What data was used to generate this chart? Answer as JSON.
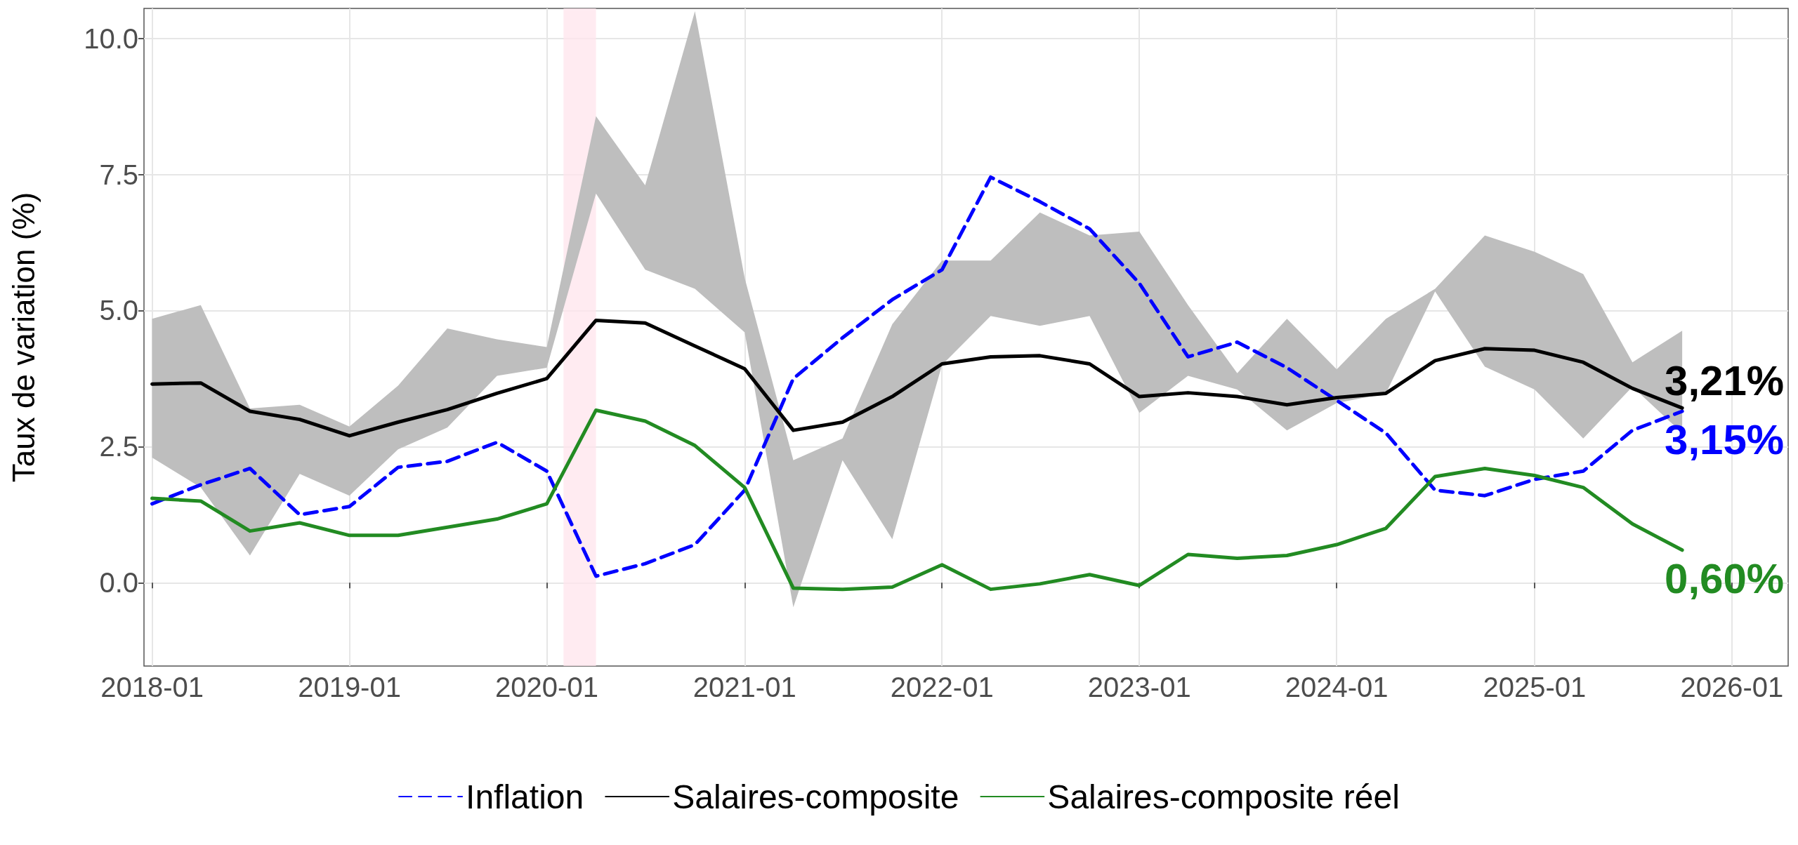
{
  "chart_data": {
    "type": "line",
    "ylabel": "Taux de variation (%)",
    "x": [
      "2018-01",
      "2018-04",
      "2018-07",
      "2018-10",
      "2019-01",
      "2019-04",
      "2019-07",
      "2019-10",
      "2020-01",
      "2020-04",
      "2020-07",
      "2020-10",
      "2021-01",
      "2021-04",
      "2021-07",
      "2021-10",
      "2022-01",
      "2022-04",
      "2022-07",
      "2022-10",
      "2023-01",
      "2023-04",
      "2023-07",
      "2023-10",
      "2024-01",
      "2024-04",
      "2024-07",
      "2024-10",
      "2025-01",
      "2025-04",
      "2025-07",
      "2025-10"
    ],
    "series": [
      {
        "name": "Inflation",
        "color": "#0000ff",
        "line_style": "dashed",
        "values": [
          1.45,
          1.8,
          2.1,
          1.25,
          1.4,
          2.12,
          2.23,
          2.58,
          2.05,
          0.12,
          0.35,
          0.7,
          1.7,
          3.75,
          4.5,
          5.2,
          5.75,
          7.45,
          7.0,
          6.5,
          5.5,
          4.15,
          4.42,
          3.95,
          3.35,
          2.75,
          1.7,
          1.6,
          1.9,
          2.05,
          2.8,
          3.15
        ],
        "value_labels": [
          null,
          null,
          null,
          null,
          null,
          null,
          null,
          null,
          null,
          null,
          null,
          null,
          null,
          null,
          null,
          null,
          null,
          null,
          null,
          null,
          null,
          null,
          null,
          null,
          null,
          null,
          null,
          null,
          null,
          null,
          null,
          "3,15%"
        ]
      },
      {
        "name": "Salaires-composite",
        "color": "#000000",
        "line_style": "solid",
        "values": [
          3.65,
          3.67,
          3.15,
          3.0,
          2.7,
          2.95,
          3.18,
          3.48,
          3.75,
          4.82,
          4.77,
          4.35,
          3.93,
          2.8,
          2.95,
          3.42,
          4.02,
          4.15,
          4.17,
          4.02,
          3.42,
          3.49,
          3.42,
          3.27,
          3.4,
          3.48,
          4.08,
          4.3,
          4.27,
          4.05,
          3.57,
          3.21
        ],
        "lower": [
          2.3,
          1.75,
          0.5,
          2.0,
          1.6,
          2.45,
          2.85,
          3.8,
          3.95,
          7.15,
          5.75,
          5.4,
          4.6,
          -0.45,
          2.25,
          0.8,
          4.0,
          4.9,
          4.72,
          4.9,
          3.12,
          3.8,
          3.55,
          2.8,
          3.3,
          3.48,
          5.35,
          3.97,
          3.55,
          2.65,
          3.6,
          2.75
        ],
        "upper": [
          4.85,
          5.1,
          3.2,
          3.27,
          2.87,
          3.62,
          4.67,
          4.47,
          4.33,
          8.57,
          7.3,
          10.5,
          5.6,
          2.25,
          2.65,
          4.75,
          5.92,
          5.92,
          6.8,
          6.38,
          6.45,
          5.1,
          3.85,
          4.85,
          3.92,
          4.85,
          5.4,
          6.38,
          6.08,
          5.67,
          4.05,
          4.63
        ],
        "value_labels": [
          null,
          null,
          null,
          null,
          null,
          null,
          null,
          null,
          null,
          null,
          null,
          null,
          null,
          null,
          null,
          null,
          null,
          null,
          null,
          null,
          null,
          null,
          null,
          null,
          null,
          null,
          null,
          null,
          null,
          null,
          null,
          "3,21%"
        ]
      },
      {
        "name": "Salaires-composite réel",
        "color": "#228b22",
        "line_style": "solid",
        "values": [
          1.55,
          1.5,
          0.95,
          1.1,
          0.87,
          0.87,
          1.02,
          1.17,
          1.45,
          3.17,
          2.97,
          2.52,
          1.75,
          -0.1,
          -0.12,
          -0.08,
          0.33,
          -0.12,
          -0.02,
          0.15,
          -0.05,
          0.52,
          0.45,
          0.5,
          0.7,
          1.0,
          1.95,
          2.1,
          1.97,
          1.75,
          1.08,
          0.6
        ],
        "value_labels": [
          null,
          null,
          null,
          null,
          null,
          null,
          null,
          null,
          null,
          null,
          null,
          null,
          null,
          null,
          null,
          null,
          null,
          null,
          null,
          null,
          null,
          null,
          null,
          null,
          null,
          null,
          null,
          null,
          null,
          null,
          null,
          "0,60%"
        ]
      }
    ],
    "bands": [
      {
        "axis": "x",
        "from": "2020-02",
        "to": "2020-04",
        "color": "#ffe4ec"
      }
    ],
    "xlim": [
      "2017-12-17",
      "2026-04-15"
    ],
    "xticks": [
      {
        "value": "2018-01",
        "label": "2018-01"
      },
      {
        "value": "2019-01",
        "label": "2019-01"
      },
      {
        "value": "2020-01",
        "label": "2020-01"
      },
      {
        "value": "2021-01",
        "label": "2021-01"
      },
      {
        "value": "2022-01",
        "label": "2022-01"
      },
      {
        "value": "2023-01",
        "label": "2023-01"
      },
      {
        "value": "2024-01",
        "label": "2024-01"
      },
      {
        "value": "2025-01",
        "label": "2025-01"
      },
      {
        "value": "2026-01",
        "label": "2026-01"
      }
    ],
    "ylim": [
      -1.53,
      10.55
    ],
    "yticks": [
      {
        "value": 0,
        "label": "0.0"
      },
      {
        "value": 2.5,
        "label": "2.5"
      },
      {
        "value": 5,
        "label": "5.0"
      },
      {
        "value": 7.5,
        "label": "7.5"
      },
      {
        "value": 10,
        "label": "10.0"
      }
    ],
    "grid": true,
    "legend": "bottom",
    "marker": "none"
  }
}
